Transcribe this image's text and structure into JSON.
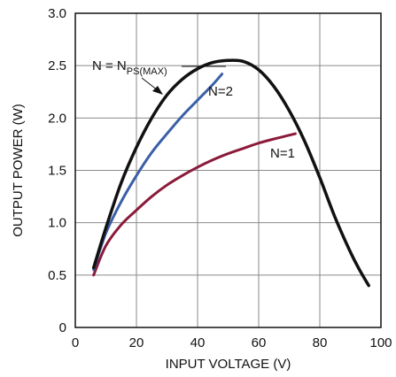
{
  "chart_data": {
    "type": "line",
    "xlabel": "INPUT VOLTAGE (V)",
    "ylabel": "OUTPUT POWER (W)",
    "xlim": [
      0,
      100
    ],
    "ylim": [
      0,
      3.0
    ],
    "x_ticks": [
      "0",
      "20",
      "40",
      "60",
      "80",
      "100"
    ],
    "y_ticks": [
      "0",
      "0.5",
      "1.0",
      "1.5",
      "2.0",
      "2.5",
      "3.0"
    ],
    "grid": true,
    "series": [
      {
        "name": "N = NPS(MAX)",
        "label_main": "N = N",
        "label_sub": "PS(MAX)",
        "color": "#111111",
        "points": [
          [
            6,
            0.57
          ],
          [
            10,
            0.95
          ],
          [
            15,
            1.38
          ],
          [
            20,
            1.72
          ],
          [
            25,
            2.0
          ],
          [
            30,
            2.22
          ],
          [
            35,
            2.37
          ],
          [
            40,
            2.47
          ],
          [
            45,
            2.53
          ],
          [
            50,
            2.55
          ],
          [
            55,
            2.54
          ],
          [
            60,
            2.46
          ],
          [
            65,
            2.3
          ],
          [
            70,
            2.07
          ],
          [
            75,
            1.78
          ],
          [
            80,
            1.43
          ],
          [
            85,
            1.05
          ],
          [
            90,
            0.72
          ],
          [
            93,
            0.55
          ],
          [
            96,
            0.4
          ]
        ]
      },
      {
        "name": "N=2",
        "color": "#3a5fa8",
        "points": [
          [
            6,
            0.55
          ],
          [
            10,
            0.9
          ],
          [
            15,
            1.2
          ],
          [
            20,
            1.45
          ],
          [
            25,
            1.67
          ],
          [
            30,
            1.85
          ],
          [
            35,
            2.02
          ],
          [
            40,
            2.17
          ],
          [
            45,
            2.32
          ],
          [
            48,
            2.42
          ]
        ]
      },
      {
        "name": "N=1",
        "color": "#8b1a3a",
        "points": [
          [
            6,
            0.5
          ],
          [
            10,
            0.78
          ],
          [
            15,
            0.98
          ],
          [
            20,
            1.12
          ],
          [
            25,
            1.25
          ],
          [
            30,
            1.36
          ],
          [
            35,
            1.45
          ],
          [
            40,
            1.53
          ],
          [
            45,
            1.6
          ],
          [
            50,
            1.66
          ],
          [
            55,
            1.71
          ],
          [
            60,
            1.76
          ],
          [
            65,
            1.8
          ],
          [
            72,
            1.85
          ]
        ]
      }
    ]
  }
}
